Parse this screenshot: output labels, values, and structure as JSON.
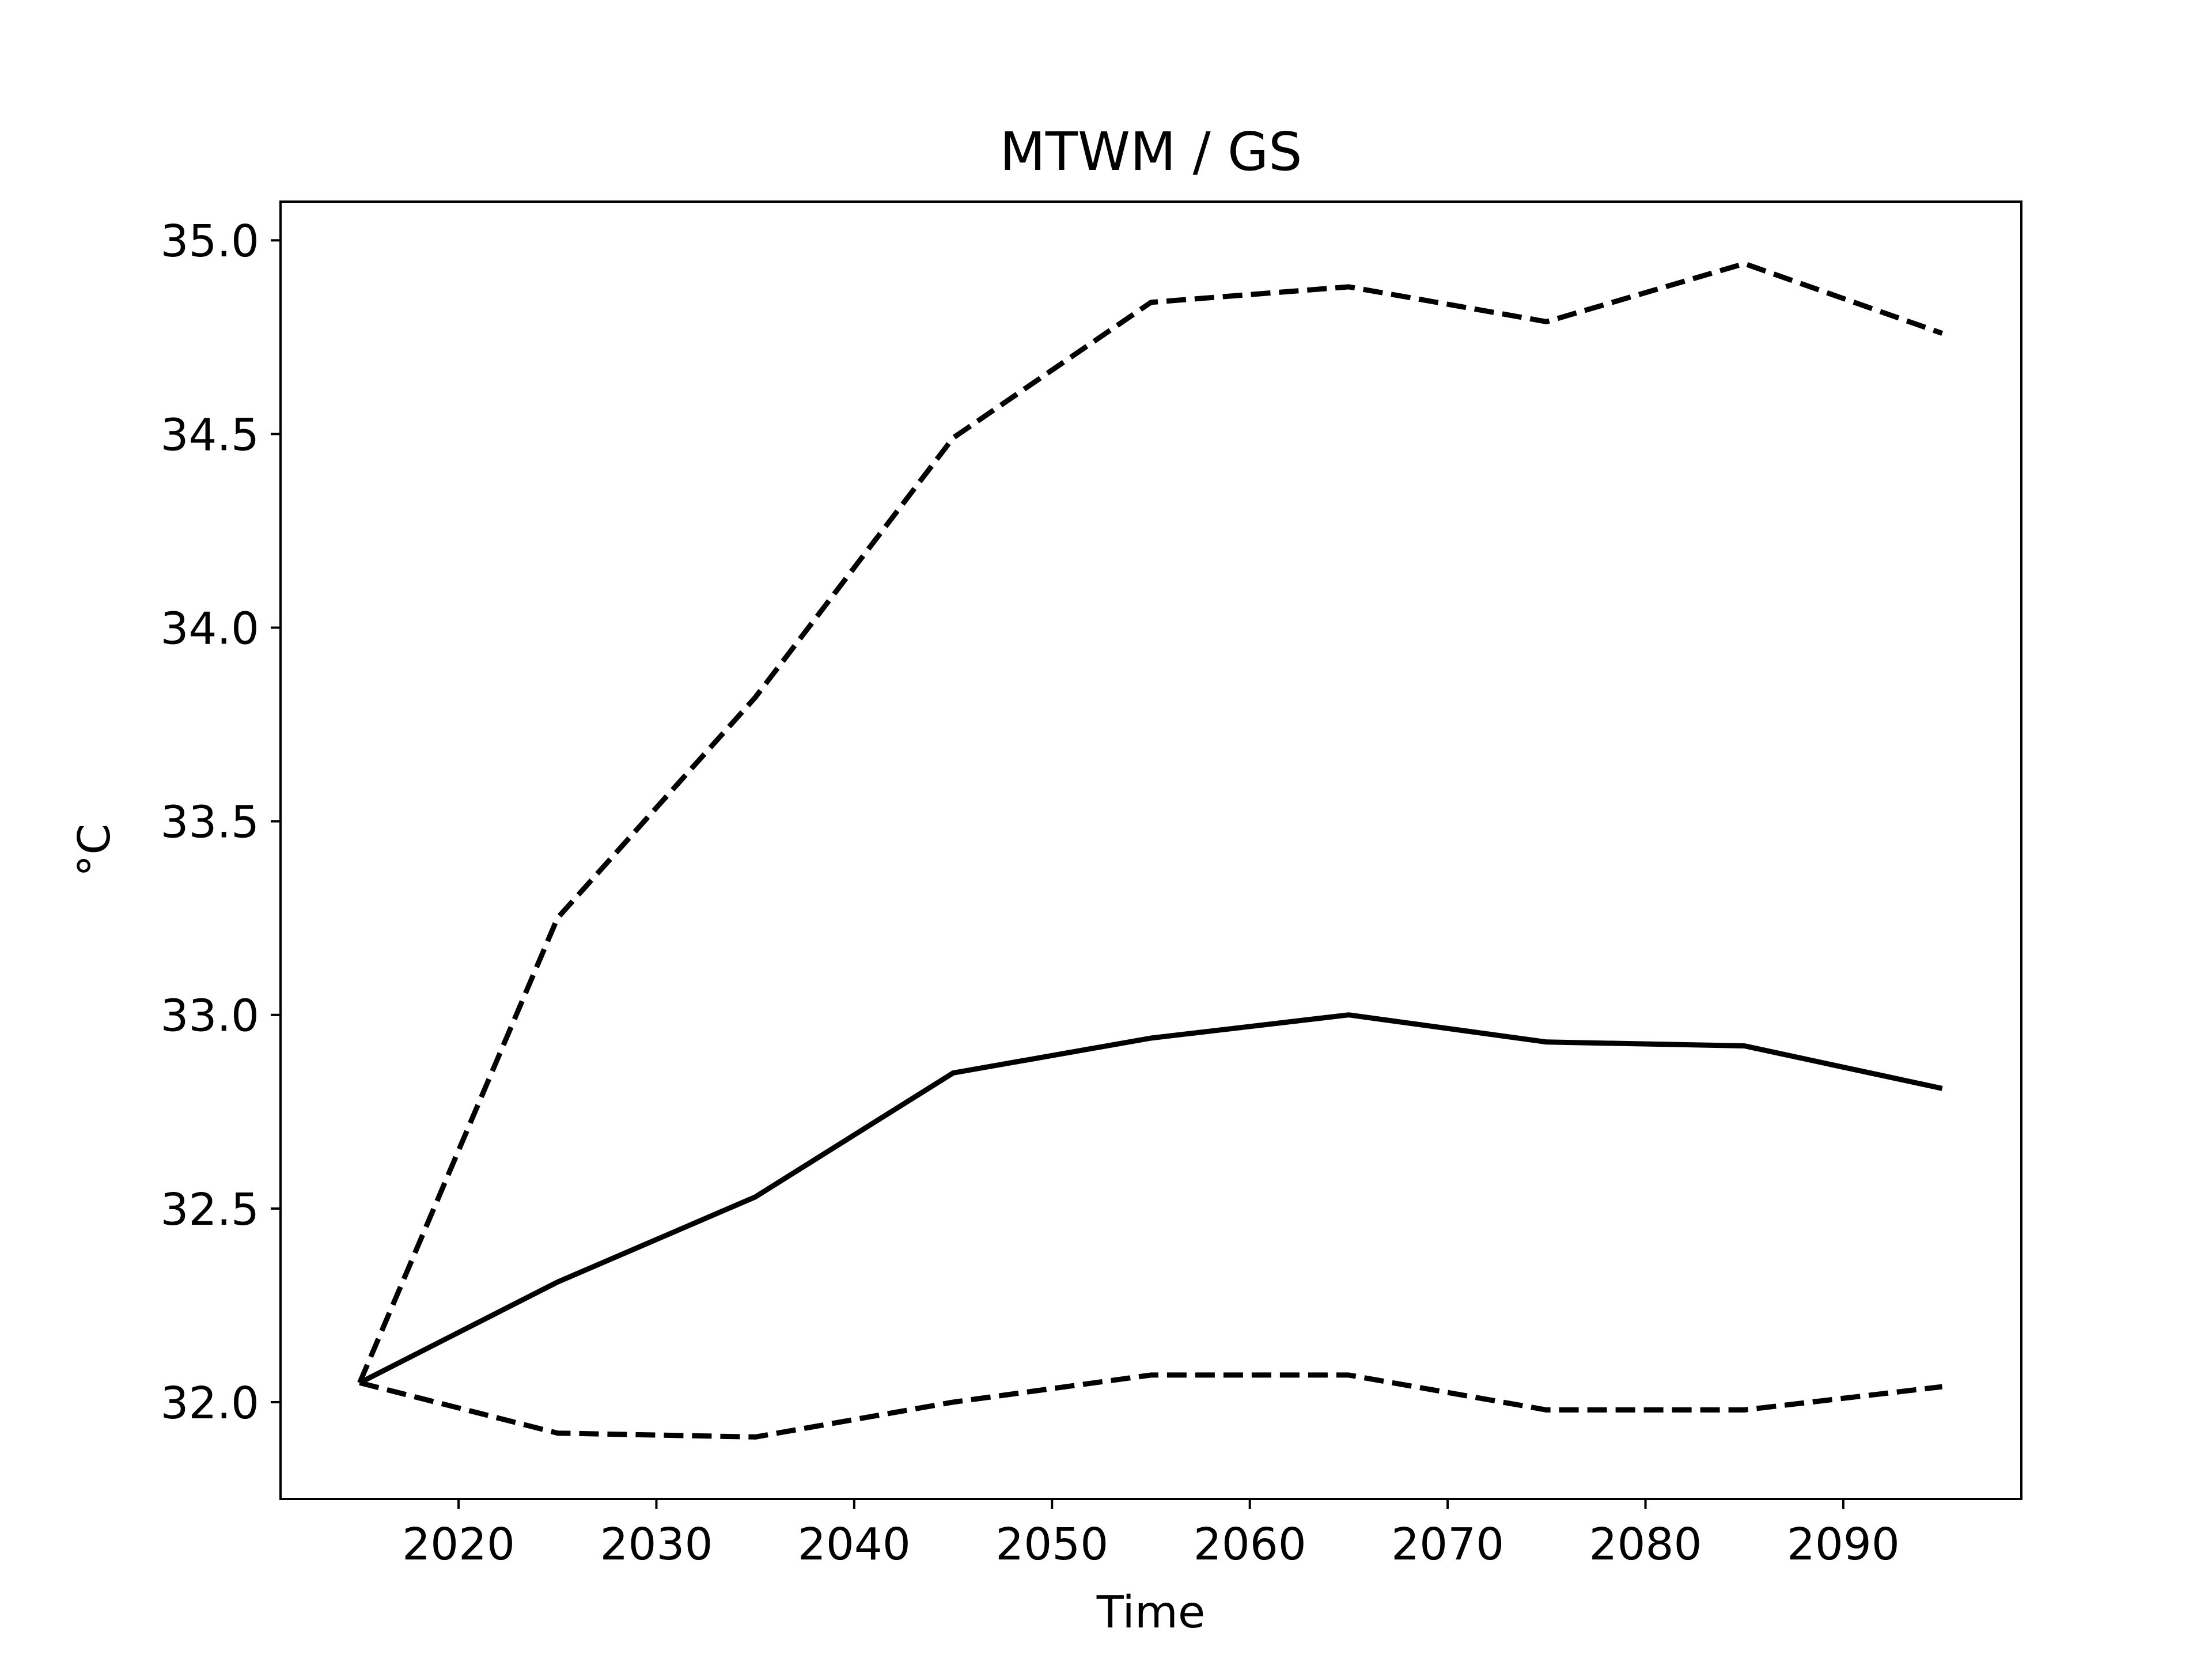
{
  "chart_data": {
    "type": "line",
    "title": "MTWM / GS",
    "xlabel": "Time",
    "ylabel": "°C",
    "x": [
      2015,
      2025,
      2035,
      2045,
      2055,
      2065,
      2075,
      2085,
      2095
    ],
    "xlim": [
      2011,
      2099
    ],
    "ylim": [
      31.75,
      35.1
    ],
    "xticks": [
      2020,
      2030,
      2040,
      2050,
      2060,
      2070,
      2080,
      2090
    ],
    "xtick_labels": [
      "2020",
      "2030",
      "2040",
      "2050",
      "2060",
      "2070",
      "2080",
      "2090"
    ],
    "yticks": [
      32.0,
      32.5,
      33.0,
      33.5,
      34.0,
      34.5,
      35.0
    ],
    "ytick_labels": [
      "32.0",
      "32.5",
      "33.0",
      "33.5",
      "34.0",
      "34.5",
      "35.0"
    ],
    "grid": false,
    "legend": false,
    "series": [
      {
        "style": "dashed",
        "color": "#000000",
        "values": [
          32.05,
          33.25,
          33.82,
          34.49,
          34.84,
          34.88,
          34.79,
          34.94,
          34.76
        ]
      },
      {
        "style": "solid",
        "color": "#000000",
        "values": [
          32.05,
          32.31,
          32.53,
          32.85,
          32.94,
          33.0,
          32.93,
          32.92,
          32.81
        ]
      },
      {
        "style": "dashed",
        "color": "#000000",
        "values": [
          32.05,
          31.92,
          31.91,
          32.0,
          32.07,
          32.07,
          31.98,
          31.98,
          32.04
        ]
      }
    ]
  }
}
